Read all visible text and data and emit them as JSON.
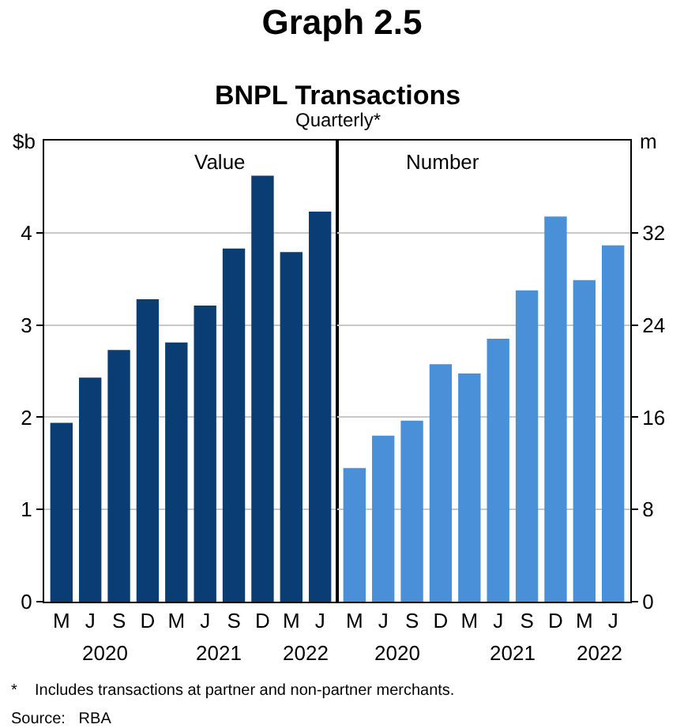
{
  "chart_data": [
    {
      "type": "bar",
      "title": "Graph 2.5",
      "subtitle": "BNPL Transactions",
      "ylabel": "$b",
      "categories": [
        "M",
        "J",
        "S",
        "D",
        "M",
        "J",
        "S",
        "D",
        "M",
        "J"
      ],
      "series": [
        {
          "color": "#0a3d73",
          "values": [
            1.94,
            2.43,
            2.73,
            3.28,
            2.81,
            3.21,
            3.83,
            4.62,
            3.79,
            4.23
          ]
        }
      ],
      "ylim": [
        0,
        5
      ],
      "yticks": [
        0,
        1,
        2,
        3,
        4
      ],
      "grid": "y",
      "annotations": [
        "Quarterly*",
        "*    Includes transactions at partner and non-partner merchants.",
        "Source:   RBA",
        "Value",
        "2020",
        "2021",
        "2022"
      ]
    },
    {
      "type": "bar",
      "ylabel": "m",
      "categories": [
        "M",
        "J",
        "S",
        "D",
        "M",
        "J",
        "S",
        "D",
        "M",
        "J"
      ],
      "series": [
        {
          "color": "#4a90d9",
          "values": [
            11.6,
            14.4,
            15.7,
            20.6,
            19.8,
            22.8,
            27.0,
            33.4,
            27.9,
            30.9
          ]
        }
      ],
      "ylim": [
        0,
        40
      ],
      "yticks": [
        0,
        8,
        16,
        24,
        32
      ],
      "grid": "y",
      "annotations": [
        "Number",
        "2020",
        "2021",
        "2022"
      ]
    }
  ]
}
